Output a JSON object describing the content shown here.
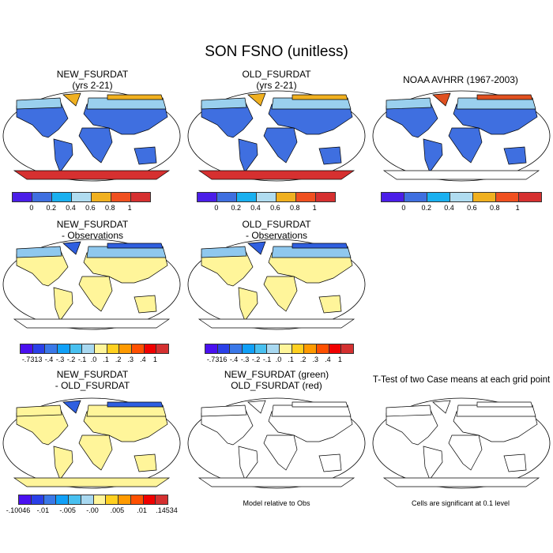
{
  "title": "SON FSNO (unitless)",
  "panels": [
    {
      "title1": "NEW_FSURDAT",
      "title2": "(yrs 2-21)",
      "land": "#3f6fe0",
      "north": "#9ad0ee",
      "arctic": "#f0b020",
      "ant": "#d63030"
    },
    {
      "title1": "OLD_FSURDAT",
      "title2": "(yrs 2-21)",
      "land": "#3f6fe0",
      "north": "#9ad0ee",
      "arctic": "#f0b020",
      "ant": "#d63030"
    },
    {
      "title1": "NOAA AVHRR (1967-2003)",
      "title2": "",
      "land": "#3f6fe0",
      "north": "#9ad0ee",
      "arctic": "#e05020",
      "ant": "#ffffff"
    },
    {
      "title1": "NEW_FSURDAT",
      "title2": "- Observations",
      "land": "#fff59a",
      "north": "#8fc8ee",
      "arctic": "#2f5fe0",
      "ant": "#ffffff"
    },
    {
      "title1": "OLD_FSURDAT",
      "title2": "- Observations",
      "land": "#fff59a",
      "north": "#8fc8ee",
      "arctic": "#2f5fe0",
      "ant": "#ffffff"
    },
    {
      "title1": "NEW_FSURDAT",
      "title2": "- OLD_FSURDAT",
      "land": "#fff59a",
      "north": "#fff59a",
      "arctic": "#2f5fe0",
      "ant": "#fff59a"
    },
    {
      "title1": "NEW_FSURDAT (green)",
      "title2": "OLD_FSURDAT (red)",
      "land": "#ffffff",
      "north": "#ffffff",
      "arctic": "#ffffff",
      "ant": "#ffffff"
    },
    {
      "title1": "T-Test of two Case means at each grid point",
      "title2": "",
      "land": "#ffffff",
      "north": "#ffffff",
      "arctic": "#ffffff",
      "ant": "#ffffff"
    }
  ],
  "colorbars": {
    "abs": {
      "colors": [
        "#4b1ee8",
        "#3f6fe0",
        "#1ab0f0",
        "#b0dcf0",
        "#f0b020",
        "#f05020",
        "#d63030"
      ],
      "labels": [
        "0",
        "0.2",
        "0.4",
        "0.6",
        "0.8",
        "1"
      ]
    },
    "diff1": {
      "colors": [
        "#4a10f0",
        "#2a40e8",
        "#3a78e8",
        "#10a0f8",
        "#48c0f0",
        "#a8d8f0",
        "#fff59a",
        "#ffd020",
        "#ff9a00",
        "#ff5000",
        "#f00000",
        "#d43030"
      ],
      "labels": [
        "-.7313",
        "-.4",
        "-.3",
        "-.2",
        "-.1",
        ".0",
        ".1",
        ".2",
        ".3",
        ".4",
        "1"
      ]
    },
    "diff2": {
      "colors": [
        "#4a10f0",
        "#2a40e8",
        "#3a78e8",
        "#10a0f8",
        "#48c0f0",
        "#a8d8f0",
        "#fff59a",
        "#ffd020",
        "#ff9a00",
        "#ff5000",
        "#f00000",
        "#d43030"
      ],
      "labels": [
        "-.7316",
        "-.4",
        "-.3",
        "-.2",
        "-.1",
        ".0",
        ".1",
        ".2",
        ".3",
        ".4",
        "1"
      ]
    },
    "diff3": {
      "colors": [
        "#4a10f0",
        "#2a40e8",
        "#3a78e8",
        "#10a0f8",
        "#48c0f0",
        "#a8d8f0",
        "#fff59a",
        "#ffd020",
        "#ff9a00",
        "#ff5000",
        "#f00000",
        "#d43030"
      ],
      "labels": [
        "-.10046",
        "-.01",
        "-.005",
        "-.00",
        ".005",
        ".01",
        ".14534"
      ]
    }
  },
  "notes": {
    "model": "Model relative to Obs",
    "ttest": "Cells are significant at 0.1 level"
  }
}
